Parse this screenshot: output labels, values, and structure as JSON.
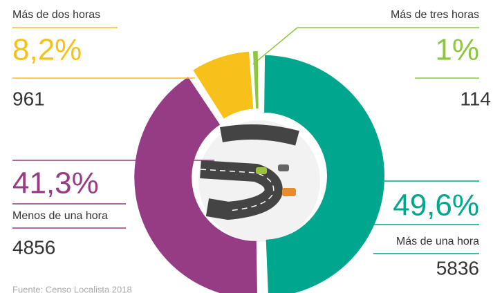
{
  "chart_data": {
    "type": "donut",
    "categories": [
      "Más de una hora",
      "Menos de una hora",
      "Más de dos horas",
      "Más de tres horas"
    ],
    "values": [
      49.6,
      41.3,
      8.2,
      1
    ],
    "value_labels": [
      "49,6%",
      "41,3%",
      "8,2%",
      "1%"
    ],
    "counts": [
      5836,
      4856,
      961,
      114
    ],
    "colors": [
      "#00a78e",
      "#963c84",
      "#f8c01a",
      "#8dc63f"
    ],
    "source": "Fuente: Censo Localista 2018"
  }
}
